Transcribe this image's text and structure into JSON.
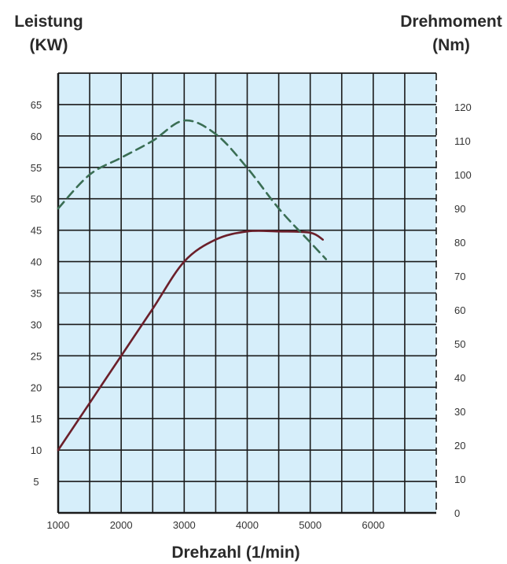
{
  "chart_data": {
    "type": "line",
    "left_axis_title": [
      "Leistung",
      "(KW)"
    ],
    "right_axis_title": [
      "Drehmoment",
      "(Nm)"
    ],
    "xlabel": "Drehzahl (1/min)",
    "x_ticks": [
      "1000",
      "2000",
      "3000",
      "4000",
      "5000",
      "6000"
    ],
    "y_left_ticks": [
      "5",
      "10",
      "15",
      "20",
      "25",
      "30",
      "35",
      "40",
      "45",
      "50",
      "55",
      "60",
      "65"
    ],
    "y_right_ticks": [
      "0",
      "10",
      "20",
      "30",
      "40",
      "50",
      "60",
      "70",
      "80",
      "90",
      "100",
      "110",
      "120"
    ],
    "xlim": [
      1000,
      7000
    ],
    "ylim_left": [
      0,
      70
    ],
    "ylim_right": [
      0,
      130
    ],
    "grid": true,
    "series": [
      {
        "axis": "left",
        "style": "solid",
        "color": "#6b1f2a",
        "x": [
          1000,
          1500,
          2000,
          2500,
          3000,
          3500,
          4000,
          4500,
          5000,
          5200
        ],
        "y": [
          10,
          17.5,
          25,
          32.5,
          40,
          43.5,
          44.8,
          44.8,
          44.6,
          43.5
        ]
      },
      {
        "axis": "right",
        "style": "dashed",
        "color": "#3a6e54",
        "x": [
          1000,
          1500,
          2000,
          2500,
          3000,
          3500,
          4000,
          4500,
          5000,
          5250
        ],
        "y": [
          90,
          100,
          105,
          110,
          116,
          112,
          102,
          90,
          80,
          75
        ]
      }
    ],
    "colors": {
      "plot_bg": "#d6eefa",
      "grid": "#1a1a1a"
    }
  }
}
